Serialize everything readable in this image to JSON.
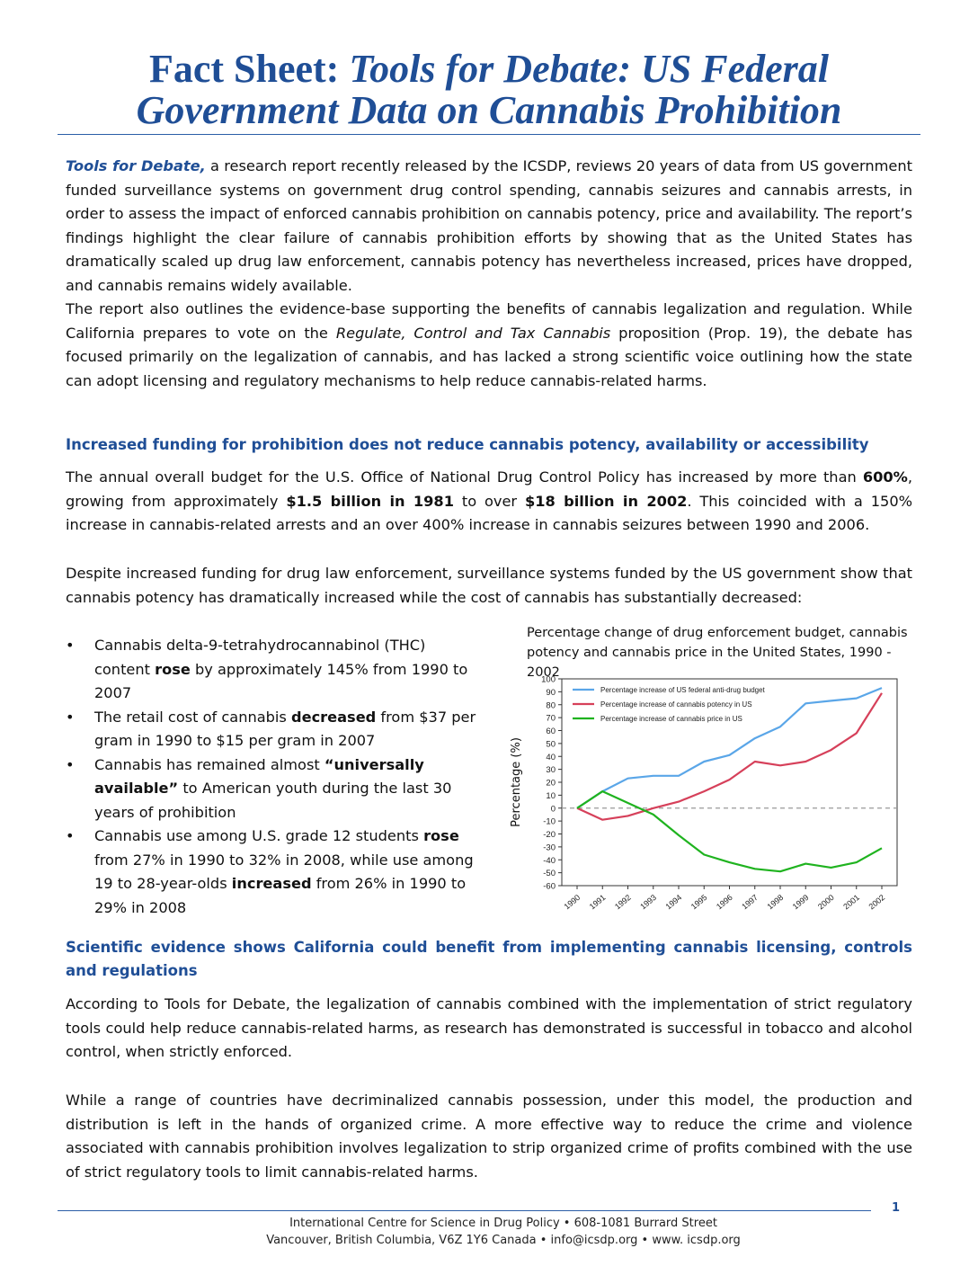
{
  "title": {
    "prefix": "Fact Sheet:",
    "line1_italic": " Tools for Debate: US Federal",
    "line2_italic": "Government Data on Cannabis Prohibition"
  },
  "intro": {
    "lead_italic": "Tools for Debate,",
    "p1_rest": " a research report recently released by the ICSDP, reviews 20 years of data from US government funded surveillance systems on government drug control spending, cannabis seizures and cannabis arrests, in order to assess the impact of enforced cannabis prohibition on cannabis potency, price and availability. The report’s findings highlight the clear failure of cannabis prohibition efforts by showing that as the United States has dramatically scaled up drug law enforcement, cannabis potency has nevertheless increased, prices have dropped, and cannabis remains widely available.",
    "p2_a": "The report also outlines the evidence-base supporting the benefits of cannabis legalization and regulation. While California prepares to vote on the ",
    "p2_italic": "Regulate, Control and Tax Cannabis",
    "p2_b": " proposition (Prop. 19), the debate has focused primarily on the legalization of cannabis, and has lacked a strong scientific voice outlining how the state can adopt licensing and regulatory mechanisms to help reduce cannabis-related harms."
  },
  "section1": {
    "heading": "Increased funding for prohibition does not reduce cannabis potency, availability or accessibility",
    "p1_a": "The annual overall budget for the U.S. Office of National Drug Control Policy has increased by more than ",
    "p1_b1": "600%",
    "p1_c": ", growing from approximately ",
    "p1_b2": "$1.5 billion in 1981",
    "p1_d": " to over ",
    "p1_b3": "$18 billion in 2002",
    "p1_e": ". This coincided with a 150% increase in cannabis-related arrests and an over 400% increase in cannabis seizures between 1990 and 2006.",
    "p2": "Despite increased funding for drug law enforcement, surveillance systems funded by the US government show that cannabis potency has dramatically increased while the cost of cannabis has substantially decreased:",
    "bullets": [
      {
        "a": "Cannabis delta-9-tetrahydrocannabinol (THC) content ",
        "b": "rose",
        "c": " by approximately 145% from 1990 to 2007",
        "b2": "",
        "c2": ""
      },
      {
        "a": "The retail cost of cannabis ",
        "b": "decreased",
        "c": " from $37 per gram in 1990 to $15 per gram in 2007",
        "b2": "",
        "c2": ""
      },
      {
        "a": "Cannabis has remained almost ",
        "b": "“universally available”",
        "c": " to American youth during the last 30 years of prohibition",
        "b2": "",
        "c2": ""
      },
      {
        "a": "Cannabis use among U.S. grade 12 students ",
        "b": "rose",
        "c": " from 27% in 1990 to 32% in 2008, while use among 19 to 28-year-olds ",
        "b2": "increased",
        "c2": " from 26% in 1990 to 29% in 2008"
      }
    ]
  },
  "chart_title": "Percentage change of drug enforcement budget, cannabis potency and cannabis price in the United States, 1990 - 2002",
  "chart_data": {
    "type": "line",
    "title": "Percentage change of drug enforcement budget, cannabis potency and cannabis price in the United States, 1990 - 2002",
    "xlabel": "",
    "ylabel": "Percentage (%)",
    "ylim": [
      -60,
      100
    ],
    "yticks": [
      100,
      90,
      80,
      70,
      60,
      50,
      40,
      30,
      20,
      10,
      0,
      -10,
      -20,
      -30,
      -40,
      -50,
      -60
    ],
    "x": [
      "1990",
      "1991",
      "1992",
      "1993",
      "1994",
      "1995",
      "1996",
      "1997",
      "1998",
      "1999",
      "2000",
      "2001",
      "2002"
    ],
    "legend_position": "top-left",
    "reference_line": 0,
    "series": [
      {
        "name": "Percentage increase of US federal anti-drug budget",
        "color": "#5aa6e8",
        "values": [
          0,
          13,
          23,
          25,
          25,
          36,
          41,
          54,
          63,
          81,
          83,
          85,
          93
        ]
      },
      {
        "name": "Percentage increase of cannabis potency in US",
        "color": "#d6405a",
        "values": [
          0,
          -9,
          -6,
          0,
          5,
          13,
          22,
          36,
          33,
          36,
          45,
          58,
          89
        ]
      },
      {
        "name": "Percentage increase of cannabis price in US",
        "color": "#1fb31f",
        "values": [
          0,
          13,
          4,
          -5,
          -21,
          -36,
          -42,
          -47,
          -49,
          -43,
          -46,
          -42,
          -31
        ]
      }
    ]
  },
  "section2": {
    "heading": "Scientific evidence shows California could benefit from implementing cannabis licensing, controls and regulations",
    "p1": "According to Tools for Debate, the legalization of cannabis combined with the implementation of strict regulatory tools could help reduce cannabis-related harms, as research has demonstrated is successful in tobacco and alcohol control, when strictly enforced.",
    "p2": "While a range of countries have decriminalized cannabis possession, under this model, the production and distribution is left in the hands of organized crime. A more effective way to reduce the crime and violence associated with cannabis prohibition involves legalization to strip organized crime of profits combined with the use of strict regulatory tools to limit cannabis-related harms."
  },
  "footer": {
    "page_number": "1",
    "line1": "International Centre for Science in Drug Policy • 608-1081 Burrard Street",
    "line2": "Vancouver, British Columbia, V6Z 1Y6 Canada • info@icsdp.org • www. icsdp.org"
  }
}
